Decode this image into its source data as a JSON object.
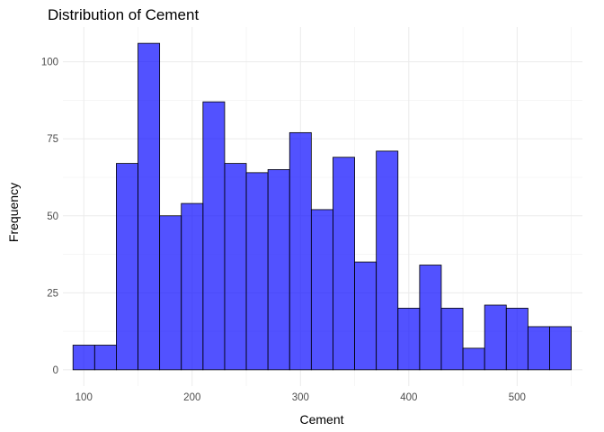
{
  "chart_data": {
    "type": "bar",
    "title": "Distribution of Cement",
    "xlabel": "Cement",
    "ylabel": "Frequency",
    "x_ticks": [
      100,
      200,
      300,
      400,
      500
    ],
    "y_ticks": [
      0,
      25,
      50,
      75,
      100
    ],
    "xlim": [
      80.7,
      560.3
    ],
    "ylim": [
      -5.3,
      111.3
    ],
    "bin_width": 20,
    "bins": [
      {
        "start": 90,
        "end": 110,
        "count": 8
      },
      {
        "start": 110,
        "end": 130,
        "count": 8
      },
      {
        "start": 130,
        "end": 150,
        "count": 67
      },
      {
        "start": 150,
        "end": 170,
        "count": 106
      },
      {
        "start": 170,
        "end": 190,
        "count": 50
      },
      {
        "start": 190,
        "end": 210,
        "count": 54
      },
      {
        "start": 210,
        "end": 230,
        "count": 87
      },
      {
        "start": 230,
        "end": 250,
        "count": 67
      },
      {
        "start": 250,
        "end": 270,
        "count": 64
      },
      {
        "start": 270,
        "end": 290,
        "count": 65
      },
      {
        "start": 290,
        "end": 310,
        "count": 77
      },
      {
        "start": 310,
        "end": 330,
        "count": 52
      },
      {
        "start": 330,
        "end": 350,
        "count": 69
      },
      {
        "start": 350,
        "end": 370,
        "count": 35
      },
      {
        "start": 370,
        "end": 390,
        "count": 71
      },
      {
        "start": 390,
        "end": 410,
        "count": 20
      },
      {
        "start": 410,
        "end": 430,
        "count": 34
      },
      {
        "start": 430,
        "end": 450,
        "count": 20
      },
      {
        "start": 450,
        "end": 470,
        "count": 7
      },
      {
        "start": 470,
        "end": 490,
        "count": 21
      },
      {
        "start": 490,
        "end": 510,
        "count": 20
      },
      {
        "start": 510,
        "end": 530,
        "count": 14
      },
      {
        "start": 530,
        "end": 550,
        "count": 14
      }
    ],
    "bar_fill": "#0000ff",
    "bar_opacity": 0.68,
    "bar_outline": "#000000",
    "grid": true,
    "legend": "none"
  }
}
